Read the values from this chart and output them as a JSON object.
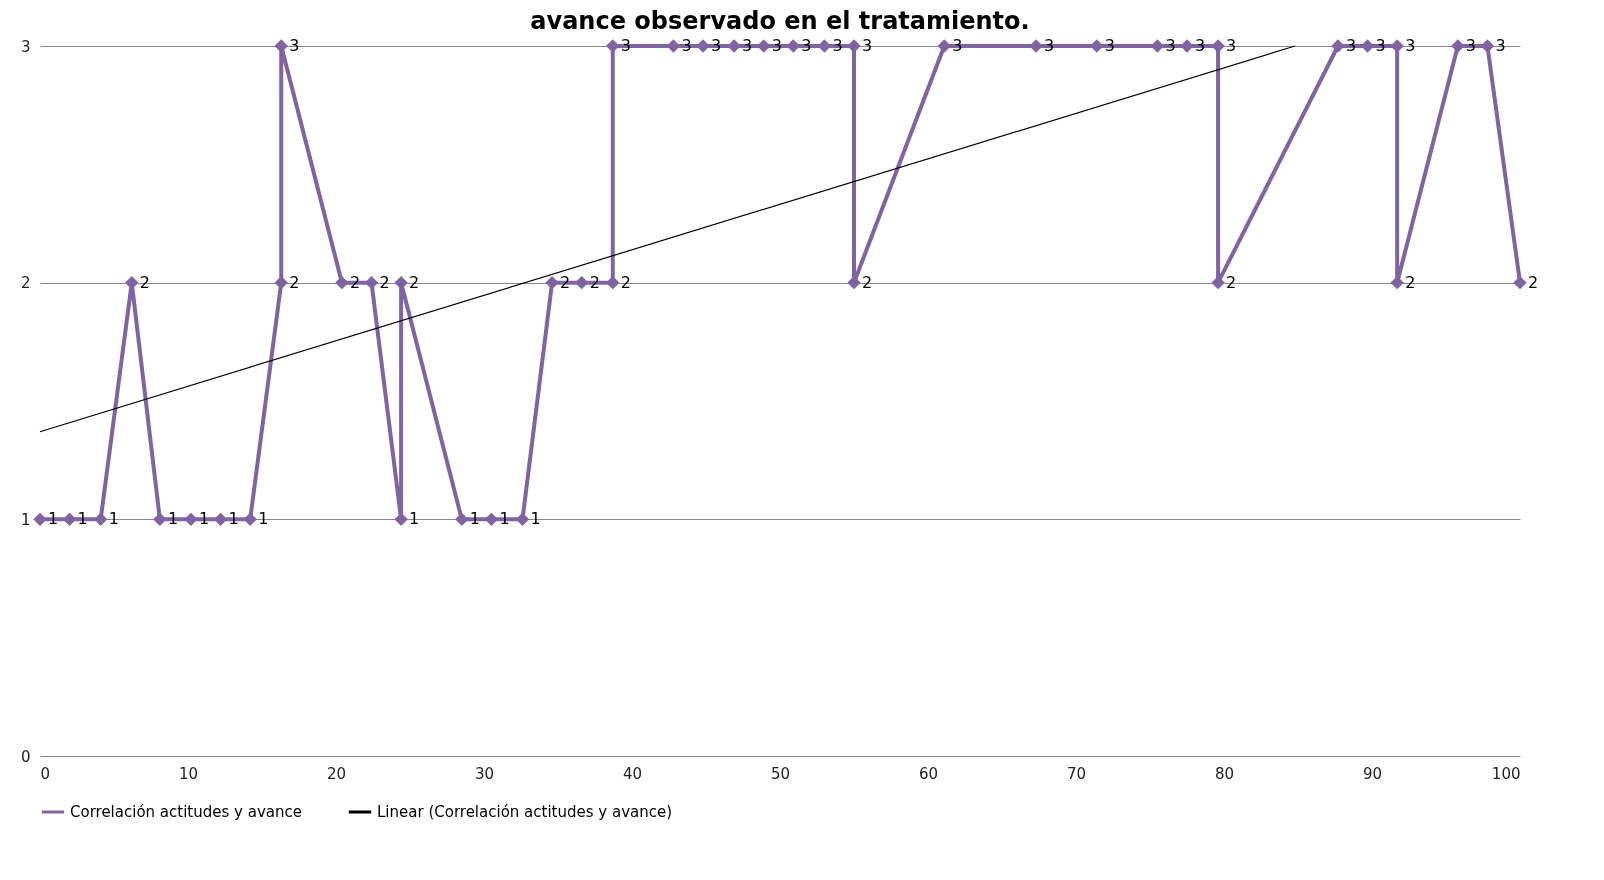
{
  "chart_data": {
    "type": "line",
    "title": "avance observado en el tratamiento.",
    "xlim": [
      0,
      100
    ],
    "xticks": [
      0,
      10,
      20,
      30,
      40,
      50,
      60,
      70,
      80,
      90,
      100
    ],
    "ylim": [
      0,
      3
    ],
    "yticks": [
      0,
      1,
      2,
      3
    ],
    "grid": "y",
    "legend": "bottom",
    "line_style": "solid",
    "series": [
      {
        "name": "Correlación actitudes y avance",
        "color": "#8064a2",
        "marker": "diamond",
        "data_labels": true,
        "x": [
          0,
          2.0,
          4.1,
          6.2,
          8.1,
          10.2,
          12.2,
          14.2,
          16.3,
          16.3,
          20.4,
          22.4,
          24.4,
          24.4,
          28.5,
          30.5,
          32.6,
          34.6,
          36.6,
          38.7,
          38.7,
          42.8,
          44.8,
          46.9,
          48.9,
          50.9,
          53.0,
          55.0,
          55.0,
          61.1,
          67.3,
          71.4,
          75.5,
          77.5,
          79.6,
          79.6,
          87.7,
          89.7,
          91.7,
          91.7,
          95.8,
          97.8,
          100
        ],
        "values": [
          1,
          1,
          1,
          2,
          1,
          1,
          1,
          1,
          2,
          3,
          2,
          2,
          1,
          2,
          1,
          1,
          1,
          2,
          2,
          2,
          3,
          3,
          3,
          3,
          3,
          3,
          3,
          3,
          2,
          3,
          3,
          3,
          3,
          3,
          3,
          2,
          3,
          3,
          3,
          2,
          3,
          3,
          2
        ]
      },
      {
        "name": "Linear (Correlación actitudes y avance)",
        "color": "#000000",
        "marker": "none",
        "x": [
          0,
          84.8
        ],
        "values": [
          1.37,
          3
        ]
      }
    ]
  }
}
